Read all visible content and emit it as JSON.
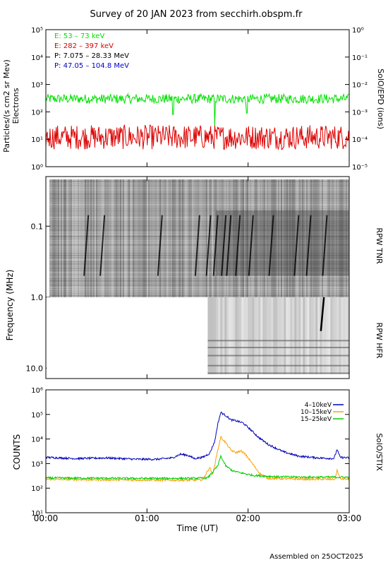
{
  "title": "Survey of 20 JAN 2023 from secchirh.obspm.fr",
  "footer": "Assembled on 25OCT2025",
  "colors": {
    "green": "#00e000",
    "red": "#dd0000",
    "black": "#000000",
    "blue": "#0000cc",
    "orange": "#ffa000",
    "stix_blue": "#0000bb",
    "stix_green": "#00cc00"
  },
  "chart_data": [
    {
      "type": "line",
      "panel": "epd",
      "ylabel": "Particles/(s cm2 sr Mev)",
      "ylabel2": "Electrons",
      "right_label": "SolO/EPD (ions)",
      "y_scale": "log",
      "ylim": [
        1,
        100000
      ],
      "y_ticks": [
        "10⁰",
        "10¹",
        "10²",
        "10³",
        "10⁴",
        "10⁵"
      ],
      "y2lim": [
        1e-05,
        1
      ],
      "y2_ticks": [
        "10⁻⁵",
        "10⁻⁴",
        "10⁻³",
        "10⁻²",
        "10⁻¹",
        "10⁰"
      ],
      "legend": [
        {
          "text": "E: 53 – 73 keV",
          "color": "#00e000"
        },
        {
          "text": "E: 282 – 397 keV",
          "color": "#dd0000"
        },
        {
          "text": "P: 7.075 – 28.33 MeV",
          "color": "#000000"
        },
        {
          "text": "P: 47.05 – 104.8 MeV",
          "color": "#0000cc"
        }
      ],
      "series": [
        {
          "name": "E: 53 – 73 keV",
          "color": "#00e000",
          "typical": 300,
          "spread": 0.35,
          "dips": [
            {
              "t": 1.26,
              "v": 80
            },
            {
              "t": 1.67,
              "v": 30
            },
            {
              "t": 1.99,
              "v": 90
            }
          ]
        },
        {
          "name": "E: 282 – 397 keV",
          "color": "#dd0000",
          "typical": 12,
          "spread": 0.9,
          "dips": []
        }
      ]
    },
    {
      "type": "heatmap",
      "panel": "rpw",
      "ylabel": "Frequency (MHz)",
      "y_scale": "log",
      "ylim": [
        0.02,
        14
      ],
      "y_ticks": [
        "0.1",
        "1.0",
        "10.0"
      ],
      "y_tick_values": [
        0.1,
        1.0,
        10.0
      ],
      "tnr_label": "RPW TNR",
      "hfr_label": "RPW HFR",
      "hfr_start_hours": 1.6,
      "bursts_hours": [
        0.42,
        0.58,
        1.15,
        1.52,
        1.63,
        1.7,
        1.78,
        1.83,
        1.92,
        2.05,
        2.25,
        2.5,
        2.62,
        2.78
      ]
    },
    {
      "type": "line",
      "panel": "stix",
      "ylabel": "COUNTS",
      "right_label": "SolO/STIX",
      "y_scale": "log",
      "ylim": [
        10,
        1000000
      ],
      "y_ticks": [
        "10¹",
        "10²",
        "10³",
        "10⁴",
        "10⁵",
        "10⁶"
      ],
      "xlabel": "Time (UT)",
      "x_ticks": [
        "00:00",
        "01:00",
        "02:00",
        "03:00"
      ],
      "xlim_hours": [
        0,
        3
      ],
      "series": [
        {
          "name": "4–10keV",
          "color": "#0000bb",
          "points": [
            [
              0,
              1800
            ],
            [
              0.3,
              1600
            ],
            [
              0.6,
              1700
            ],
            [
              0.9,
              1500
            ],
            [
              1.1,
              1500
            ],
            [
              1.25,
              1700
            ],
            [
              1.33,
              2400
            ],
            [
              1.4,
              2200
            ],
            [
              1.47,
              1600
            ],
            [
              1.55,
              1800
            ],
            [
              1.62,
              2600
            ],
            [
              1.67,
              8000
            ],
            [
              1.7,
              40000
            ],
            [
              1.73,
              120000
            ],
            [
              1.78,
              90000
            ],
            [
              1.83,
              60000
            ],
            [
              1.88,
              55000
            ],
            [
              1.95,
              45000
            ],
            [
              2.02,
              25000
            ],
            [
              2.1,
              12000
            ],
            [
              2.2,
              6000
            ],
            [
              2.35,
              3000
            ],
            [
              2.5,
              2000
            ],
            [
              2.7,
              1700
            ],
            [
              2.85,
              1600
            ],
            [
              2.88,
              3800
            ],
            [
              2.91,
              1800
            ],
            [
              3,
              1700
            ]
          ]
        },
        {
          "name": "10–15keV",
          "color": "#ffa000",
          "points": [
            [
              0,
              230
            ],
            [
              0.5,
              220
            ],
            [
              1.0,
              215
            ],
            [
              1.4,
              210
            ],
            [
              1.55,
              220
            ],
            [
              1.62,
              700
            ],
            [
              1.65,
              350
            ],
            [
              1.7,
              3500
            ],
            [
              1.73,
              12000
            ],
            [
              1.78,
              7000
            ],
            [
              1.83,
              3500
            ],
            [
              1.88,
              2800
            ],
            [
              1.93,
              3300
            ],
            [
              1.98,
              2200
            ],
            [
              2.05,
              900
            ],
            [
              2.12,
              380
            ],
            [
              2.2,
              250
            ],
            [
              2.6,
              230
            ],
            [
              2.86,
              230
            ],
            [
              2.88,
              550
            ],
            [
              2.91,
              240
            ],
            [
              3,
              230
            ]
          ]
        },
        {
          "name": "15–25keV",
          "color": "#00cc00",
          "points": [
            [
              0,
              260
            ],
            [
              0.5,
              255
            ],
            [
              1.0,
              250
            ],
            [
              1.4,
              250
            ],
            [
              1.6,
              260
            ],
            [
              1.7,
              800
            ],
            [
              1.73,
              2000
            ],
            [
              1.78,
              800
            ],
            [
              1.85,
              500
            ],
            [
              1.95,
              400
            ],
            [
              2.05,
              330
            ],
            [
              2.3,
              290
            ],
            [
              2.6,
              280
            ],
            [
              3,
              280
            ]
          ]
        }
      ]
    }
  ]
}
